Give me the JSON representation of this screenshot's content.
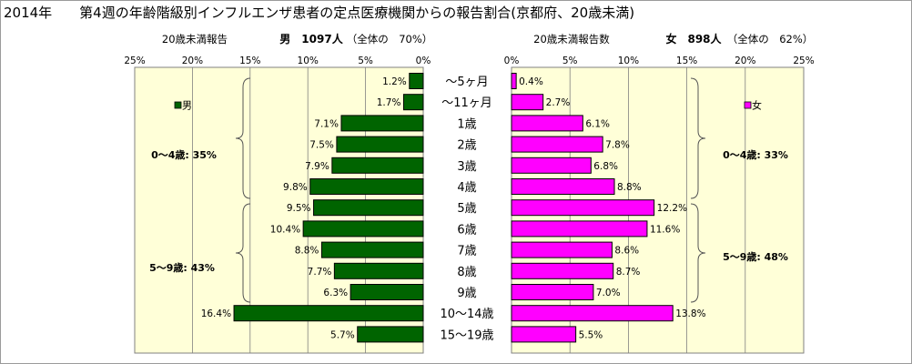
{
  "title": "2014年　　第4週の年齢階級別インフルエンザ患者の定点医療機関からの報告割合(京都府、20歳未満)",
  "colors": {
    "male": "#006400",
    "female": "#ff00ff",
    "panel": "#ffffd8",
    "grid": "#808080"
  },
  "chart_data": {
    "type": "bar",
    "categories": [
      "～5ヶ月",
      "～11ヶ月",
      "1歳",
      "2歳",
      "3歳",
      "4歳",
      "5歳",
      "6歳",
      "7歳",
      "8歳",
      "9歳",
      "10～14歳",
      "15～19歳"
    ],
    "series": [
      {
        "name": "男",
        "values": [
          1.2,
          1.7,
          7.1,
          7.5,
          7.9,
          9.8,
          9.5,
          10.4,
          8.8,
          7.7,
          6.3,
          16.4,
          5.7
        ],
        "labels": [
          "1.2%",
          "1.7%",
          "7.1%",
          "7.5%",
          "7.9%",
          "9.8%",
          "9.5%",
          "10.4%",
          "8.8%",
          "7.7%",
          "6.3%",
          "16.4%",
          "5.7%"
        ]
      },
      {
        "name": "女",
        "values": [
          0.4,
          2.7,
          6.1,
          7.8,
          6.8,
          8.8,
          12.2,
          11.6,
          8.6,
          8.7,
          7.0,
          13.8,
          5.5
        ],
        "labels": [
          "0.4%",
          "2.7%",
          "6.1%",
          "7.8%",
          "6.8%",
          "8.8%",
          "12.2%",
          "11.6%",
          "8.6%",
          "8.7%",
          "7.0%",
          "13.8%",
          "5.5%"
        ]
      }
    ],
    "male_panel": {
      "header_label": "20歳未満報告",
      "header_total": "男　1097人",
      "header_share": "（全体の　70%）",
      "tick_labels": [
        "25%",
        "20%",
        "15%",
        "10%",
        "5%",
        "0%"
      ],
      "legend": "男",
      "group_labels": [
        "0～4歳:  35%",
        "5～9歳:  43%"
      ]
    },
    "female_panel": {
      "header_label": "20歳未満報告数",
      "header_total": "女　898人",
      "header_share": "（全体の　62%）",
      "tick_labels": [
        "0%",
        "5%",
        "10%",
        "15%",
        "20%",
        "25%"
      ],
      "legend": "女",
      "group_labels": [
        "0～4歳:  33%",
        "5～9歳:  48%"
      ]
    },
    "xlim": [
      0,
      25
    ],
    "grid": true,
    "legend_position_male": "top-left",
    "legend_position_female": "top-right"
  }
}
